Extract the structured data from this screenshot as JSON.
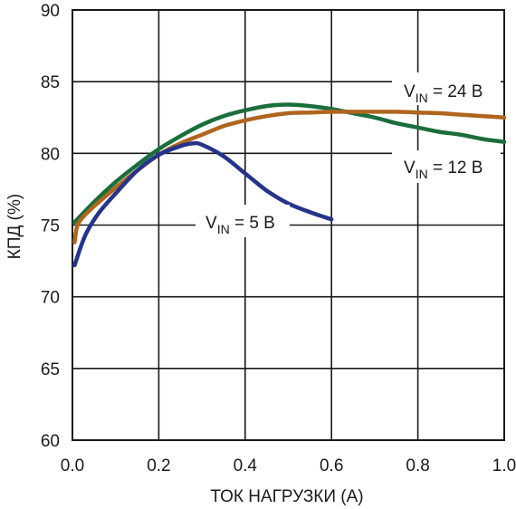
{
  "chart_data": {
    "type": "line",
    "xlabel": "ТОК НАГРУЗКИ (А)",
    "ylabel": "КПД (%)",
    "xlim": [
      0,
      1.0
    ],
    "ylim": [
      60,
      90
    ],
    "x_ticks": [
      "0.0",
      "0.2",
      "0.4",
      "0.6",
      "0.8",
      "1.0"
    ],
    "y_ticks": [
      "60",
      "65",
      "70",
      "75",
      "80",
      "85",
      "90"
    ],
    "grid": true,
    "series": [
      {
        "name": "VIN = 24 В",
        "label_main": "V",
        "label_sub": "IN",
        "label_rest": " = 24 В",
        "color": "#1a6e3c",
        "x": [
          0.005,
          0.05,
          0.1,
          0.15,
          0.2,
          0.25,
          0.3,
          0.35,
          0.4,
          0.45,
          0.5,
          0.55,
          0.6,
          0.65,
          0.7,
          0.75,
          0.8,
          0.85,
          0.9,
          0.95,
          1.0
        ],
        "y": [
          75.2,
          76.6,
          78.0,
          79.2,
          80.3,
          81.2,
          82.0,
          82.6,
          83.0,
          83.3,
          83.4,
          83.3,
          83.1,
          82.8,
          82.5,
          82.1,
          81.8,
          81.5,
          81.3,
          81.0,
          80.8
        ]
      },
      {
        "name": "VIN = 12 В",
        "label_main": "V",
        "label_sub": "IN",
        "label_rest": " = 12 В",
        "color": "#b0651e",
        "x": [
          0.005,
          0.01,
          0.02,
          0.05,
          0.1,
          0.15,
          0.2,
          0.25,
          0.3,
          0.35,
          0.4,
          0.45,
          0.5,
          0.55,
          0.6,
          0.65,
          0.7,
          0.75,
          0.8,
          0.85,
          0.9,
          0.95,
          1.0
        ],
        "y": [
          73.8,
          74.8,
          75.4,
          76.3,
          77.6,
          78.8,
          79.9,
          80.7,
          81.3,
          81.9,
          82.3,
          82.6,
          82.8,
          82.85,
          82.9,
          82.9,
          82.9,
          82.9,
          82.85,
          82.8,
          82.7,
          82.6,
          82.5
        ]
      },
      {
        "name": "VIN = 5 В",
        "label_main": "V",
        "label_sub": "IN",
        "label_rest": " = 5 В",
        "color": "#25348a",
        "x": [
          0.005,
          0.03,
          0.06,
          0.1,
          0.15,
          0.2,
          0.25,
          0.28,
          0.3,
          0.35,
          0.4,
          0.45,
          0.5,
          0.55,
          0.6
        ],
        "y": [
          72.2,
          74.3,
          75.8,
          77.2,
          78.8,
          79.9,
          80.5,
          80.7,
          80.6,
          79.8,
          78.6,
          77.4,
          76.5,
          75.9,
          75.4
        ]
      }
    ]
  }
}
